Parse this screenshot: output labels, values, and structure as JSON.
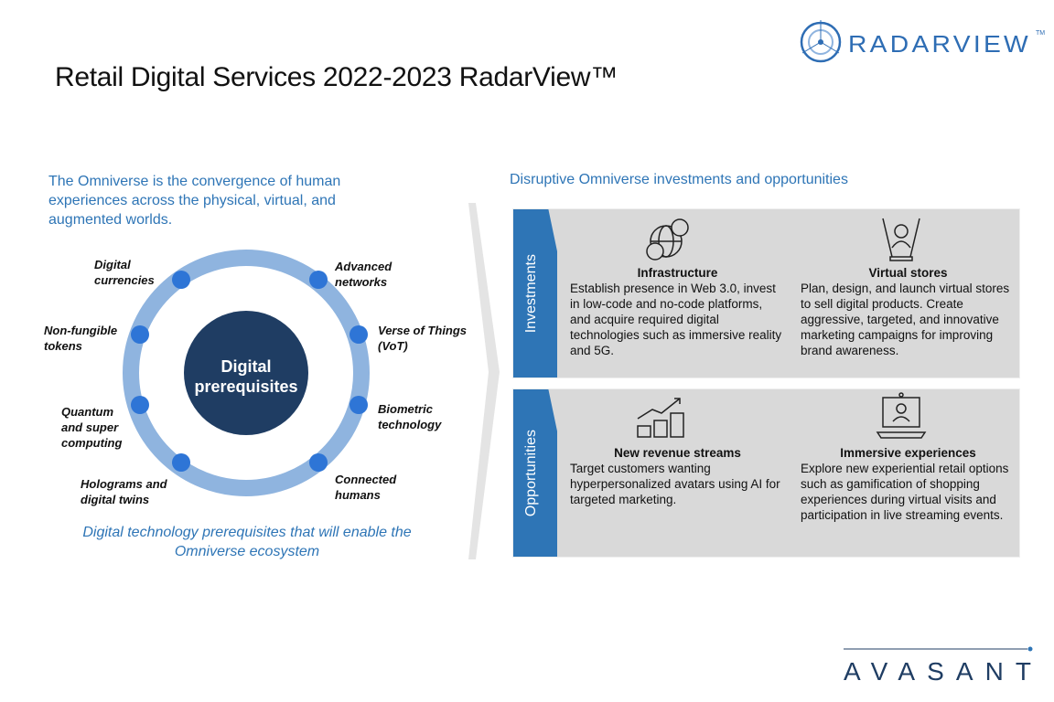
{
  "title": "Retail Digital Services 2022-2023 RadarView™",
  "logo_top": "RADARVIEW™",
  "logo_bottom": "AVASANT",
  "left": {
    "intro": "The Omniverse is the convergence of human experiences across the physical, virtual, and augmented worlds.",
    "center": "Digital prerequisites",
    "labels": [
      "Digital currencies",
      "Advanced networks",
      "Non-fungible tokens",
      "Verse of Things (VoT)",
      "Quantum and super computing",
      "Biometric technology",
      "Holograms and digital twins",
      "Connected humans"
    ],
    "caption": "Digital technology prerequisites that will enable the Omniverse ecosystem"
  },
  "right": {
    "title": "Disruptive Omniverse investments and opportunities",
    "investments": {
      "label": "Investments",
      "items": [
        {
          "title": "Infrastructure",
          "text": "Establish presence in Web 3.0, invest in low-code and no-code platforms, and acquire required digital technologies such as immersive reality and 5G.",
          "icon": "globe-people-icon"
        },
        {
          "title": "Virtual stores",
          "text": "Plan, design, and launch virtual stores to sell digital products. Create aggressive, targeted, and innovative marketing campaigns for improving brand awareness.",
          "icon": "hologram-person-icon"
        }
      ]
    },
    "opportunities": {
      "label": "Opportunities",
      "items": [
        {
          "title": "New revenue streams",
          "text": "Target customers wanting hyperpersonalized avatars using AI for targeted marketing.",
          "icon": "coins-growth-icon"
        },
        {
          "title": "Immersive experiences",
          "text": "Explore new experiential retail options such as gamification of shopping experiences during virtual visits and participation in live streaming events.",
          "icon": "laptop-video-icon"
        }
      ]
    }
  },
  "colors": {
    "accent": "#2e75b6",
    "dark": "#1f3d63",
    "ring": "#8fb4df",
    "panel": "#d9d9d9"
  }
}
